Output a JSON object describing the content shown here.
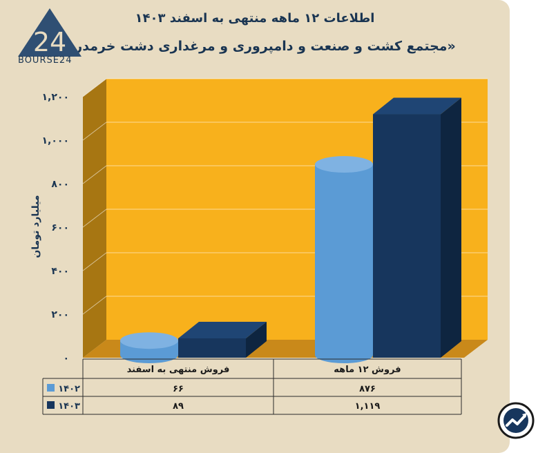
{
  "header": {
    "title": "اطلاعات ۱۲ ماهه منتهی به اسفند ۱۴۰۳",
    "subtitle": "«مجتمع کشت و صنعت و دامپروری و مرغداری دشت خرمدره »",
    "logo_text": "BOURSE24",
    "logo_mark": "24"
  },
  "colors": {
    "panel": "#e8dcc2",
    "plot_back": "#f8b11c",
    "plot_side": "#a77612",
    "series_1402": "#5b9bd5",
    "series_1403": "#17365d",
    "text": "#1a3552"
  },
  "chart_data": {
    "type": "bar",
    "ylabel": "میلیارد تومان",
    "ylim": [
      0,
      1200
    ],
    "yticks": [
      0,
      200,
      400,
      600,
      800,
      1000,
      1200
    ],
    "ytick_labels": [
      "۰",
      "۲۰۰",
      "۴۰۰",
      "۶۰۰",
      "۸۰۰",
      "۱,۰۰۰",
      "۱,۲۰۰"
    ],
    "categories": [
      "فروش منتهی به  اسفند",
      "فروش ۱۲ ماهه"
    ],
    "series": [
      {
        "name": "۱۴۰۲",
        "values": [
          66,
          876
        ],
        "value_labels": [
          "۶۶",
          "۸۷۶"
        ],
        "shape": "cylinder"
      },
      {
        "name": "۱۴۰۳",
        "values": [
          89,
          1119
        ],
        "value_labels": [
          "۸۹",
          "۱,۱۱۹"
        ],
        "shape": "box"
      }
    ],
    "grid": true,
    "legend": "data-table"
  }
}
